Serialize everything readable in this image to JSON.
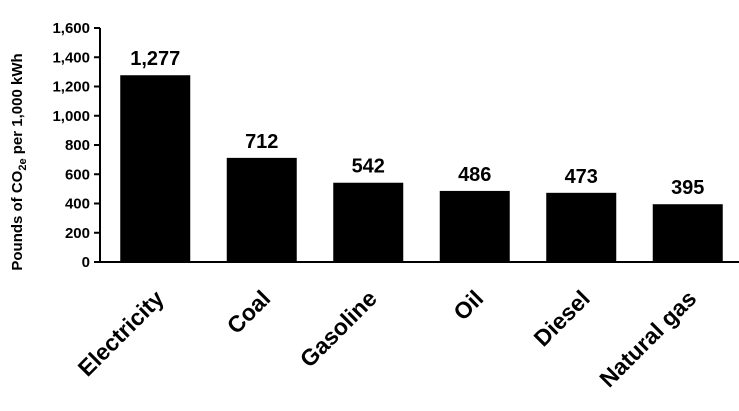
{
  "chart_data": {
    "type": "bar",
    "categories": [
      "Electricity",
      "Coal",
      "Gasoline",
      "Oil",
      "Diesel",
      "Natural gas"
    ],
    "values": [
      1277,
      712,
      542,
      486,
      473,
      395
    ],
    "value_labels": [
      "1,277",
      "712",
      "542",
      "486",
      "473",
      "395"
    ],
    "title": "",
    "xlabel": "",
    "ylabel": {
      "prefix": "Pounds of CO",
      "subscript": "2e",
      "suffix": " per 1,000 kWh"
    },
    "ylim": [
      0,
      1600
    ],
    "yticks": [
      0,
      200,
      400,
      600,
      800,
      1000,
      1200,
      1400,
      1600
    ],
    "ytick_labels": [
      "0",
      "200",
      "400",
      "600",
      "800",
      "1,000",
      "1,200",
      "1,400",
      "1,600"
    ],
    "grid": false,
    "legend": "none",
    "colors": {
      "bar": "#000000",
      "axis": "#000000",
      "background": "#ffffff"
    }
  }
}
